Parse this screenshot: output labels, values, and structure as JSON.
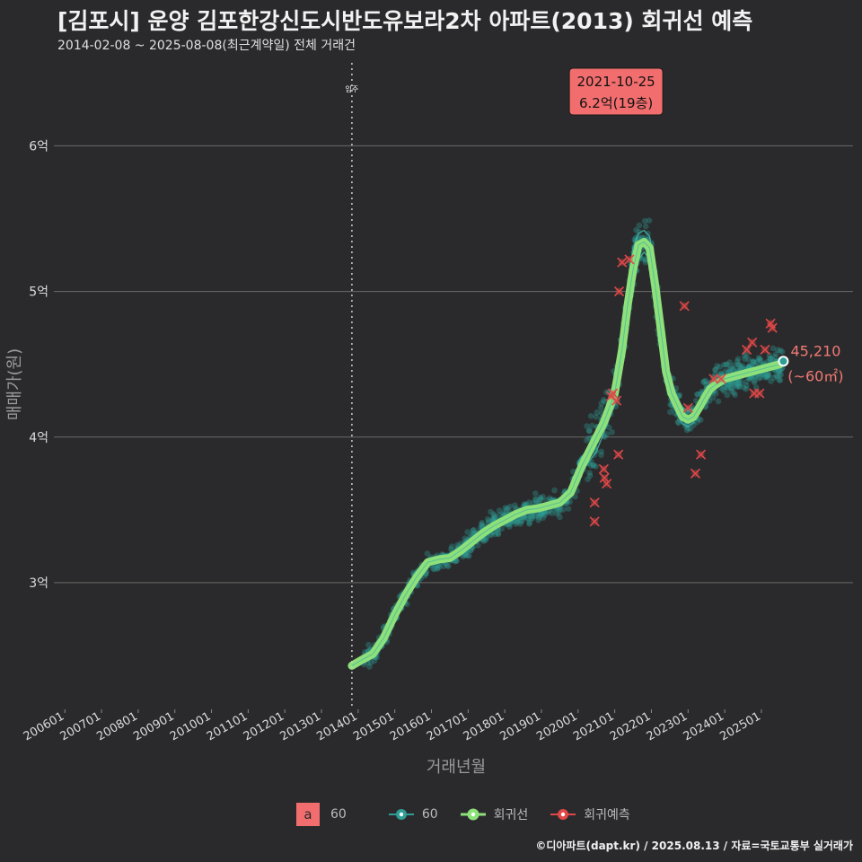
{
  "header": {
    "title": "[김포시] 운양 김포한강신도시반도유보라2차 아파트(2013) 회귀선 예측",
    "subtitle": "2014-02-08 ~ 2025-08-08(최근계약일) 전체 거래건"
  },
  "credit": "©디아파트(dapt.kr) / 2025.08.13 / 자료=국토교통부 실거래가",
  "colors": {
    "background": "#2a2a2c",
    "grid": "#6a6a6a",
    "scatter": "#2f9e94",
    "regression": "#8ee07a",
    "prediction": "#e04848",
    "label_box": "#f26e6e",
    "annotation_text": "#f27a72"
  },
  "legend": {
    "fill_key": "a",
    "fill_label": "60",
    "items": [
      {
        "name": "60",
        "color": "#2f9e94"
      },
      {
        "name": "회귀선",
        "color": "#8ee07a"
      },
      {
        "name": "회귀예측",
        "color": "#e04848"
      }
    ]
  },
  "chart_data": {
    "type": "scatter",
    "title": "[김포시] 운양 김포한강신도시반도유보라2차 아파트(2013) 회귀선 예측",
    "xlabel": "거래년월",
    "ylabel": "매매가(원)",
    "x_ticks": [
      "200601",
      "200701",
      "200801",
      "200901",
      "201001",
      "201101",
      "201201",
      "201301",
      "201401",
      "201501",
      "201601",
      "201701",
      "201801",
      "201901",
      "202001",
      "202101",
      "202201",
      "202301",
      "202401",
      "202501"
    ],
    "y_ticks": [
      {
        "value": 3,
        "label": "3억"
      },
      {
        "value": 4,
        "label": "4억"
      },
      {
        "value": 5,
        "label": "5억"
      },
      {
        "value": 6,
        "label": "6억"
      }
    ],
    "xlim": [
      2005.7,
      2027.5
    ],
    "ylim": [
      2.13,
      6.57
    ],
    "move_in": {
      "x": 2013.83,
      "label": "입주"
    },
    "peak_label": {
      "x": 2021.82,
      "y": 6.2,
      "date": "2021-10-25",
      "text": "6.2억(19층)"
    },
    "last_point": {
      "x": 2025.6,
      "y": 4.521,
      "value_label": "45,210",
      "area_label": "(~60㎡)"
    },
    "regression": {
      "x": [
        2013.83,
        2014.1,
        2014.4,
        2014.7,
        2015.0,
        2015.3,
        2015.6,
        2015.9,
        2016.2,
        2016.5,
        2016.8,
        2017.1,
        2017.4,
        2017.7,
        2018.0,
        2018.3,
        2018.6,
        2018.9,
        2019.2,
        2019.5,
        2019.8,
        2020.1,
        2020.4,
        2020.7,
        2021.0,
        2021.2,
        2021.35,
        2021.5,
        2021.65,
        2021.8,
        2021.95,
        2022.1,
        2022.25,
        2022.4,
        2022.55,
        2022.7,
        2022.85,
        2023.0,
        2023.15,
        2023.3,
        2023.45,
        2023.6,
        2023.75,
        2024.0,
        2024.3,
        2024.6,
        2024.9,
        2025.2,
        2025.5
      ],
      "y": [
        2.43,
        2.47,
        2.51,
        2.62,
        2.78,
        2.92,
        3.04,
        3.14,
        3.16,
        3.17,
        3.22,
        3.28,
        3.34,
        3.39,
        3.43,
        3.47,
        3.5,
        3.51,
        3.53,
        3.55,
        3.62,
        3.8,
        3.95,
        4.1,
        4.3,
        4.6,
        4.9,
        5.15,
        5.32,
        5.34,
        5.3,
        5.05,
        4.75,
        4.45,
        4.3,
        4.22,
        4.14,
        4.12,
        4.14,
        4.2,
        4.27,
        4.33,
        4.36,
        4.4,
        4.42,
        4.44,
        4.46,
        4.48,
        4.5
      ]
    },
    "band": {
      "x": [
        2020.0,
        2020.5,
        2021.0,
        2021.2,
        2021.35,
        2021.5,
        2021.65,
        2021.8,
        2021.95,
        2022.1,
        2022.25,
        2022.4,
        2022.55,
        2022.7,
        2022.85,
        2023.0,
        2023.15
      ],
      "upper": [
        3.83,
        4.0,
        4.4,
        4.75,
        5.05,
        5.3,
        5.4,
        5.42,
        5.38,
        5.15,
        4.85,
        4.55,
        4.38,
        4.28,
        4.2,
        4.18,
        4.19
      ],
      "lower": [
        3.73,
        3.9,
        4.22,
        4.48,
        4.78,
        5.0,
        5.22,
        5.27,
        5.22,
        4.95,
        4.65,
        4.38,
        4.24,
        4.16,
        4.09,
        4.07,
        4.1
      ]
    },
    "predictions": [
      {
        "x": 2020.45,
        "y": 3.55
      },
      {
        "x": 2020.45,
        "y": 3.42
      },
      {
        "x": 2020.7,
        "y": 3.78
      },
      {
        "x": 2020.72,
        "y": 3.72
      },
      {
        "x": 2020.78,
        "y": 3.68
      },
      {
        "x": 2020.9,
        "y": 4.28
      },
      {
        "x": 2020.95,
        "y": 4.3
      },
      {
        "x": 2021.05,
        "y": 4.25
      },
      {
        "x": 2021.1,
        "y": 3.88
      },
      {
        "x": 2021.12,
        "y": 5.0
      },
      {
        "x": 2021.2,
        "y": 5.2
      },
      {
        "x": 2021.4,
        "y": 5.22
      },
      {
        "x": 2022.9,
        "y": 4.9
      },
      {
        "x": 2023.0,
        "y": 4.2
      },
      {
        "x": 2023.2,
        "y": 3.75
      },
      {
        "x": 2023.35,
        "y": 3.88
      },
      {
        "x": 2023.7,
        "y": 4.4
      },
      {
        "x": 2023.9,
        "y": 4.4
      },
      {
        "x": 2024.6,
        "y": 4.6
      },
      {
        "x": 2024.75,
        "y": 4.65
      },
      {
        "x": 2024.8,
        "y": 4.3
      },
      {
        "x": 2025.1,
        "y": 4.6
      },
      {
        "x": 2025.25,
        "y": 4.78
      },
      {
        "x": 2025.3,
        "y": 4.75
      },
      {
        "x": 2024.95,
        "y": 4.3
      }
    ]
  }
}
